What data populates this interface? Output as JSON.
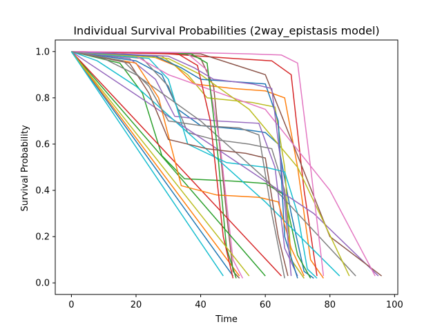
{
  "chart_data": {
    "type": "line",
    "title": "Individual Survival Probabilities (2way_epistasis model)",
    "xlabel": "Time",
    "ylabel": "Survival Probability",
    "xlim": [
      -5,
      101
    ],
    "ylim": [
      -0.05,
      1.05
    ],
    "xticks": [
      0,
      20,
      40,
      60,
      80,
      100
    ],
    "yticks": [
      0.0,
      0.2,
      0.4,
      0.6,
      0.8,
      1.0
    ],
    "grid": false,
    "legend": "none",
    "palette": [
      "#1f77b4",
      "#ff7f0e",
      "#2ca02c",
      "#d62728",
      "#9467bd",
      "#8c564b",
      "#e377c2",
      "#7f7f7f",
      "#bcbd22",
      "#17becf"
    ],
    "series": [
      {
        "x": [
          0,
          20,
          28,
          33,
          40,
          55,
          60,
          64,
          68,
          72,
          75
        ],
        "y": [
          1.0,
          0.96,
          0.9,
          0.75,
          0.68,
          0.66,
          0.65,
          0.6,
          0.3,
          0.05,
          0.02
        ]
      },
      {
        "x": [
          0,
          25,
          32,
          38,
          50,
          60,
          66,
          70,
          74,
          78
        ],
        "y": [
          1.0,
          0.98,
          0.94,
          0.86,
          0.84,
          0.83,
          0.8,
          0.5,
          0.1,
          0.02
        ]
      },
      {
        "x": [
          0,
          15,
          22,
          28,
          35,
          50,
          60,
          66,
          70,
          74
        ],
        "y": [
          1.0,
          0.95,
          0.82,
          0.55,
          0.45,
          0.44,
          0.43,
          0.38,
          0.12,
          0.02
        ]
      },
      {
        "x": [
          0,
          30,
          40,
          50,
          62,
          68,
          72,
          76
        ],
        "y": [
          1.0,
          0.99,
          0.98,
          0.97,
          0.96,
          0.9,
          0.4,
          0.03
        ]
      },
      {
        "x": [
          0,
          18,
          26,
          32,
          45,
          58,
          63,
          66,
          70
        ],
        "y": [
          1.0,
          0.97,
          0.88,
          0.72,
          0.7,
          0.69,
          0.5,
          0.15,
          0.03
        ]
      },
      {
        "x": [
          0,
          35,
          40,
          44,
          48,
          50,
          52
        ],
        "y": [
          1.0,
          0.99,
          0.97,
          0.85,
          0.3,
          0.05,
          0.02
        ]
      },
      {
        "x": [
          0,
          36,
          42,
          46,
          50,
          53
        ],
        "y": [
          1.0,
          0.99,
          0.92,
          0.6,
          0.1,
          0.02
        ]
      },
      {
        "x": [
          0,
          22,
          30,
          36,
          44,
          55,
          62,
          66,
          68,
          72
        ],
        "y": [
          1.0,
          0.97,
          0.85,
          0.65,
          0.62,
          0.6,
          0.58,
          0.4,
          0.1,
          0.02
        ]
      },
      {
        "x": [
          0,
          28,
          36,
          42,
          56,
          63,
          66,
          68,
          72
        ],
        "y": [
          1.0,
          0.98,
          0.9,
          0.8,
          0.78,
          0.76,
          0.5,
          0.1,
          0.02
        ]
      },
      {
        "x": [
          0,
          24,
          30,
          36,
          48,
          60,
          66,
          70,
          73,
          76
        ],
        "y": [
          1.0,
          0.97,
          0.88,
          0.6,
          0.52,
          0.5,
          0.48,
          0.3,
          0.06,
          0.02
        ]
      },
      {
        "x": [
          0,
          50
        ],
        "y": [
          1.0,
          0.03
        ]
      },
      {
        "x": [
          0,
          52
        ],
        "y": [
          1.0,
          0.03
        ]
      },
      {
        "x": [
          0,
          60
        ],
        "y": [
          1.0,
          0.03
        ]
      },
      {
        "x": [
          0,
          65
        ],
        "y": [
          1.0,
          0.03
        ]
      },
      {
        "x": [
          0,
          75,
          95
        ],
        "y": [
          1.0,
          0.3,
          0.03
        ]
      },
      {
        "x": [
          0,
          40,
          60,
          80,
          96
        ],
        "y": [
          1.0,
          0.99,
          0.9,
          0.2,
          0.03
        ]
      },
      {
        "x": [
          0,
          20,
          30,
          40,
          60,
          80,
          94
        ],
        "y": [
          1.0,
          0.98,
          0.9,
          0.85,
          0.75,
          0.4,
          0.03
        ]
      },
      {
        "x": [
          0,
          10,
          20,
          40,
          60,
          80,
          88
        ],
        "y": [
          1.0,
          0.97,
          0.9,
          0.7,
          0.45,
          0.15,
          0.03
        ]
      },
      {
        "x": [
          0,
          30,
          40,
          55,
          70,
          86
        ],
        "y": [
          1.0,
          0.97,
          0.9,
          0.75,
          0.5,
          0.03
        ]
      },
      {
        "x": [
          0,
          8,
          20,
          40,
          60,
          83
        ],
        "y": [
          1.0,
          0.96,
          0.85,
          0.6,
          0.35,
          0.03
        ]
      },
      {
        "x": [
          0,
          26,
          34,
          40,
          50,
          60,
          64,
          66,
          70
        ],
        "y": [
          1.0,
          0.98,
          0.93,
          0.88,
          0.87,
          0.86,
          0.7,
          0.2,
          0.02
        ]
      },
      {
        "x": [
          0,
          20,
          27,
          34,
          45,
          58,
          64,
          68,
          72
        ],
        "y": [
          1.0,
          0.95,
          0.8,
          0.42,
          0.38,
          0.37,
          0.35,
          0.15,
          0.03
        ]
      },
      {
        "x": [
          0,
          37,
          42,
          45,
          48,
          51
        ],
        "y": [
          1.0,
          0.99,
          0.95,
          0.6,
          0.15,
          0.02
        ]
      },
      {
        "x": [
          0,
          33,
          39,
          43,
          47,
          50
        ],
        "y": [
          1.0,
          0.99,
          0.94,
          0.7,
          0.2,
          0.02
        ]
      },
      {
        "x": [
          0,
          30,
          38,
          44,
          56,
          62,
          65,
          68
        ],
        "y": [
          1.0,
          0.98,
          0.93,
          0.88,
          0.86,
          0.84,
          0.5,
          0.03
        ]
      },
      {
        "x": [
          0,
          18,
          24,
          30,
          42,
          54,
          60,
          64,
          67
        ],
        "y": [
          1.0,
          0.95,
          0.82,
          0.62,
          0.58,
          0.56,
          0.54,
          0.2,
          0.03
        ]
      },
      {
        "x": [
          0,
          40,
          55,
          65,
          70,
          74,
          78
        ],
        "y": [
          1.0,
          0.995,
          0.99,
          0.985,
          0.95,
          0.5,
          0.03
        ]
      },
      {
        "x": [
          0,
          16,
          24,
          30,
          40,
          52,
          58,
          62,
          66
        ],
        "y": [
          1.0,
          0.96,
          0.85,
          0.7,
          0.68,
          0.67,
          0.64,
          0.3,
          0.02
        ]
      },
      {
        "x": [
          0,
          55
        ],
        "y": [
          1.0,
          0.03
        ]
      },
      {
        "x": [
          0,
          47
        ],
        "y": [
          1.0,
          0.03
        ]
      }
    ]
  }
}
